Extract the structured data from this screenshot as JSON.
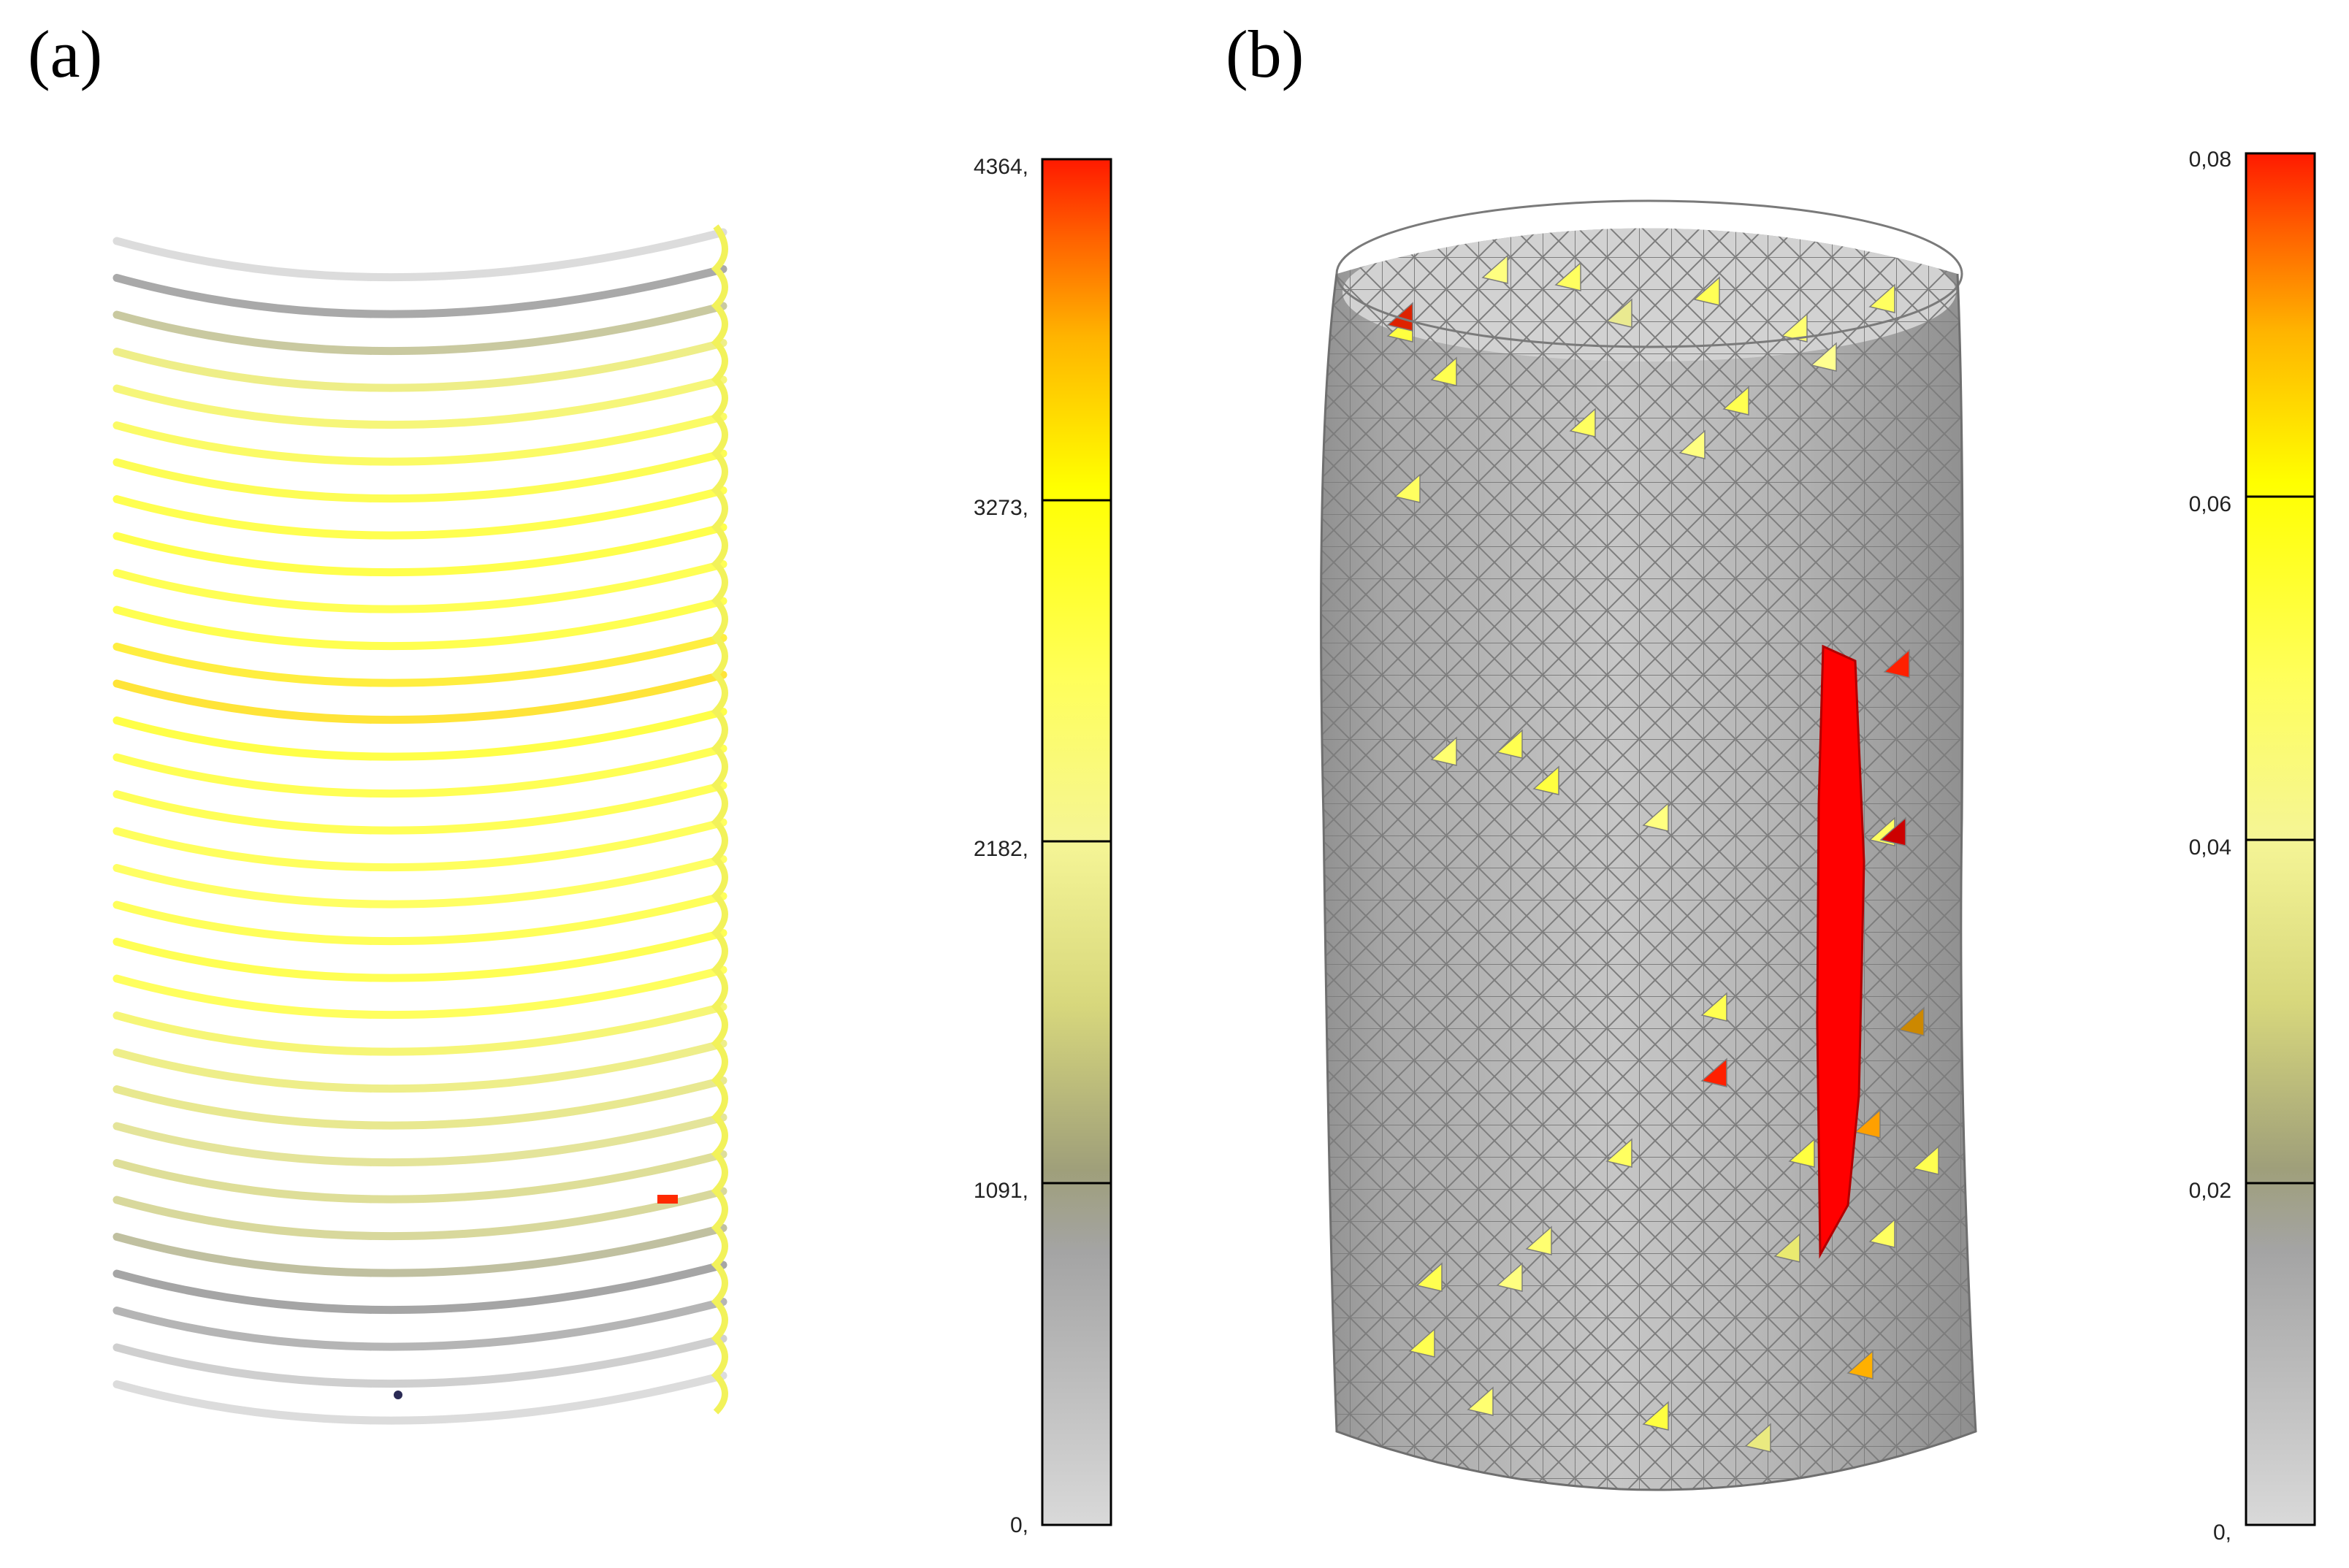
{
  "figure": {
    "panels": [
      {
        "id": "a",
        "label": "(a)",
        "colorbar": {
          "ticks": [
            "4364,",
            "3273,",
            "2182,",
            "1091,",
            "0,"
          ],
          "max": 4364,
          "min": 0
        }
      },
      {
        "id": "b",
        "label": "(b)",
        "colorbar": {
          "ticks": [
            "0,08",
            "0,06",
            "0,04",
            "0,02",
            "0,"
          ],
          "max": 0.08,
          "min": 0
        }
      }
    ],
    "colormap": [
      "#d9d9d9",
      "#a4a4a4",
      "#9f9f7a",
      "#d7d77c",
      "#f5f596",
      "#ffff5a",
      "#ffff00",
      "#ffb400",
      "#ff6400",
      "#ff1a00"
    ]
  }
}
